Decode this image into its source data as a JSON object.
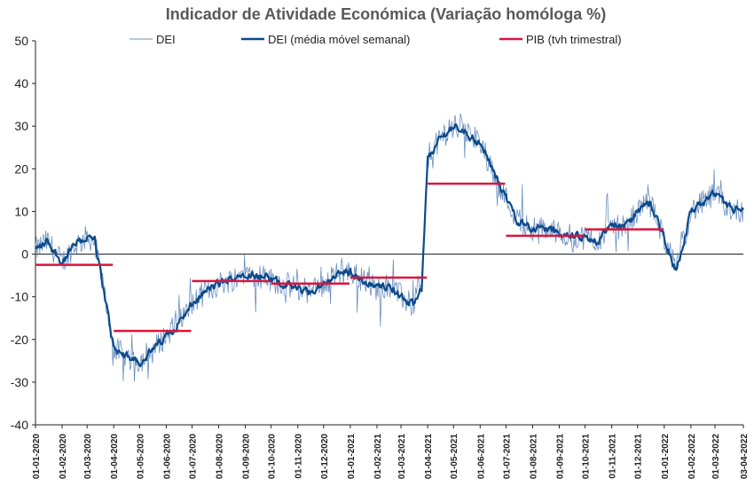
{
  "chart_data": {
    "type": "line",
    "title": "Indicador de Atividade Económica (Variação homóloga %)",
    "ylim": [
      -40,
      50
    ],
    "yticks": [
      50,
      40,
      30,
      20,
      10,
      0,
      -10,
      -20,
      -30,
      -40
    ],
    "x_tick_labels": [
      "01-01-2020",
      "01-02-2020",
      "01-03-2020",
      "01-04-2020",
      "01-05-2020",
      "01-06-2020",
      "01-07-2020",
      "01-08-2020",
      "01-09-2020",
      "01-10-2020",
      "01-11-2020",
      "01-12-2020",
      "01-01-2021",
      "01-02-2021",
      "01-03-2021",
      "01-04-2021",
      "01-05-2021",
      "01-06-2021",
      "01-07-2021",
      "01-08-2021",
      "01-09-2021",
      "01-10-2021",
      "01-11-2021",
      "01-12-2021",
      "01-01-2022",
      "01-02-2022",
      "01-03-2022",
      "03-04-2022"
    ],
    "legend": {
      "placement": "top",
      "entries": [
        "DEI",
        "DEI (média móvel semanal)",
        "PIB (tvh trimestral)"
      ]
    },
    "series": [
      {
        "name": "DEI (média móvel semanal)",
        "color": "#0b4a8b",
        "x": [
          "2020-01-01",
          "2020-01-15",
          "2020-02-01",
          "2020-02-15",
          "2020-03-01",
          "2020-03-10",
          "2020-03-20",
          "2020-04-01",
          "2020-04-15",
          "2020-05-01",
          "2020-05-15",
          "2020-06-01",
          "2020-06-15",
          "2020-07-01",
          "2020-07-15",
          "2020-08-01",
          "2020-08-15",
          "2020-09-01",
          "2020-09-15",
          "2020-10-01",
          "2020-10-15",
          "2020-11-01",
          "2020-11-15",
          "2020-12-01",
          "2020-12-15",
          "2021-01-01",
          "2021-01-15",
          "2021-02-01",
          "2021-02-15",
          "2021-03-01",
          "2021-03-15",
          "2021-03-25",
          "2021-04-01",
          "2021-04-15",
          "2021-05-01",
          "2021-05-15",
          "2021-06-01",
          "2021-06-15",
          "2021-07-01",
          "2021-07-15",
          "2021-08-01",
          "2021-08-15",
          "2021-09-01",
          "2021-09-15",
          "2021-10-01",
          "2021-10-15",
          "2021-11-01",
          "2021-11-15",
          "2021-12-01",
          "2021-12-15",
          "2022-01-01",
          "2022-01-15",
          "2022-02-01",
          "2022-02-15",
          "2022-03-01",
          "2022-03-15",
          "2022-04-03"
        ],
        "values": [
          1,
          3,
          -2,
          2,
          4,
          3,
          -8,
          -22,
          -24,
          -25,
          -23,
          -19,
          -16,
          -12,
          -9,
          -7,
          -6,
          -4,
          -5,
          -6,
          -7,
          -8,
          -9,
          -7,
          -5,
          -4,
          -6,
          -8,
          -7,
          -10,
          -12,
          -8,
          22,
          27,
          30,
          29,
          26,
          20,
          13,
          8,
          6,
          6,
          5,
          4,
          4,
          3,
          7,
          6,
          10,
          12,
          4,
          -4,
          10,
          12,
          14,
          11,
          10
        ]
      },
      {
        "name": "PIB (tvh trimestral)",
        "color": "#dc143c",
        "segments": [
          {
            "x": [
              "2020-01-01",
              "2020-03-31"
            ],
            "value": -2.5
          },
          {
            "x": [
              "2020-04-01",
              "2020-06-30"
            ],
            "value": -18
          },
          {
            "x": [
              "2020-07-01",
              "2020-09-30"
            ],
            "value": -6.3
          },
          {
            "x": [
              "2020-10-01",
              "2020-12-31"
            ],
            "value": -6.9
          },
          {
            "x": [
              "2021-01-01",
              "2021-03-31"
            ],
            "value": -5.5
          },
          {
            "x": [
              "2021-04-01",
              "2021-06-30"
            ],
            "value": 16.5
          },
          {
            "x": [
              "2021-07-01",
              "2021-09-30"
            ],
            "value": 4.3
          },
          {
            "x": [
              "2021-10-01",
              "2021-12-31"
            ],
            "value": 5.8
          }
        ]
      },
      {
        "name": "DEI",
        "color": "#6b8fbf",
        "note_daily_noise_amplitude": 3
      }
    ]
  }
}
